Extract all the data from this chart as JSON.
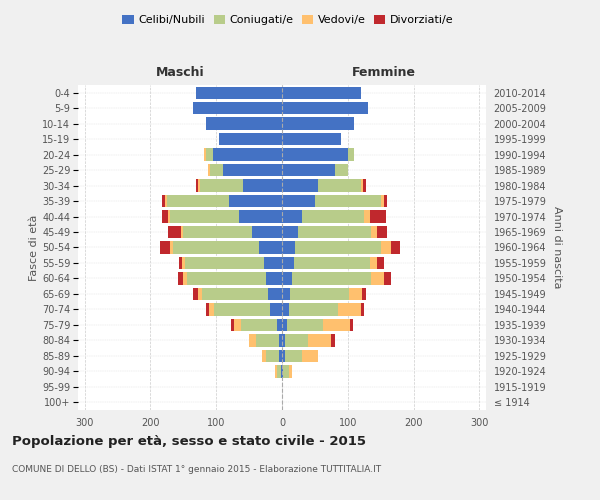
{
  "age_groups": [
    "100+",
    "95-99",
    "90-94",
    "85-89",
    "80-84",
    "75-79",
    "70-74",
    "65-69",
    "60-64",
    "55-59",
    "50-54",
    "45-49",
    "40-44",
    "35-39",
    "30-34",
    "25-29",
    "20-24",
    "15-19",
    "10-14",
    "5-9",
    "0-4"
  ],
  "birth_years": [
    "≤ 1914",
    "1915-1919",
    "1920-1924",
    "1925-1929",
    "1930-1934",
    "1935-1939",
    "1940-1944",
    "1945-1949",
    "1950-1954",
    "1955-1959",
    "1960-1964",
    "1965-1969",
    "1970-1974",
    "1975-1979",
    "1980-1984",
    "1985-1989",
    "1990-1994",
    "1995-1999",
    "2000-2004",
    "2005-2009",
    "2010-2014"
  ],
  "maschi": {
    "celibi": [
      0,
      0,
      2,
      5,
      5,
      8,
      18,
      22,
      25,
      28,
      35,
      45,
      65,
      80,
      60,
      90,
      105,
      95,
      115,
      135,
      130
    ],
    "coniugati": [
      0,
      0,
      5,
      20,
      35,
      55,
      85,
      100,
      120,
      120,
      130,
      105,
      105,
      95,
      65,
      20,
      10,
      0,
      0,
      0,
      0
    ],
    "vedovi": [
      0,
      0,
      3,
      5,
      10,
      10,
      8,
      5,
      5,
      4,
      5,
      3,
      3,
      3,
      3,
      3,
      3,
      0,
      0,
      0,
      0
    ],
    "divorziati": [
      0,
      0,
      0,
      0,
      0,
      5,
      5,
      8,
      8,
      5,
      15,
      20,
      10,
      5,
      3,
      0,
      0,
      0,
      0,
      0,
      0
    ]
  },
  "femmine": {
    "nubili": [
      0,
      0,
      2,
      5,
      5,
      8,
      10,
      12,
      15,
      18,
      20,
      25,
      30,
      50,
      55,
      80,
      100,
      90,
      110,
      130,
      120
    ],
    "coniugate": [
      0,
      0,
      8,
      25,
      35,
      55,
      75,
      90,
      120,
      115,
      130,
      110,
      95,
      100,
      65,
      20,
      10,
      0,
      0,
      0,
      0
    ],
    "vedove": [
      0,
      0,
      5,
      25,
      35,
      40,
      35,
      20,
      20,
      12,
      15,
      10,
      8,
      5,
      3,
      0,
      0,
      0,
      0,
      0,
      0
    ],
    "divorziate": [
      0,
      0,
      0,
      0,
      5,
      5,
      5,
      5,
      10,
      10,
      15,
      15,
      25,
      5,
      5,
      0,
      0,
      0,
      0,
      0,
      0
    ]
  },
  "colors": {
    "celibi_nubili": "#4472c4",
    "coniugati": "#b8cc8a",
    "vedovi": "#ffc06e",
    "divorziati": "#c0282d"
  },
  "title": "Popolazione per età, sesso e stato civile - 2015",
  "subtitle": "COMUNE DI DELLO (BS) - Dati ISTAT 1° gennaio 2015 - Elaborazione TUTTITALIA.IT",
  "xlabel_left": "Maschi",
  "xlabel_right": "Femmine",
  "ylabel_left": "Fasce di età",
  "ylabel_right": "Anni di nascita",
  "xlim": 310,
  "background_color": "#f0f0f0",
  "plot_bg": "#ffffff",
  "legend_labels": [
    "Celibi/Nubili",
    "Coniugati/e",
    "Vedovi/e",
    "Divorziati/e"
  ]
}
